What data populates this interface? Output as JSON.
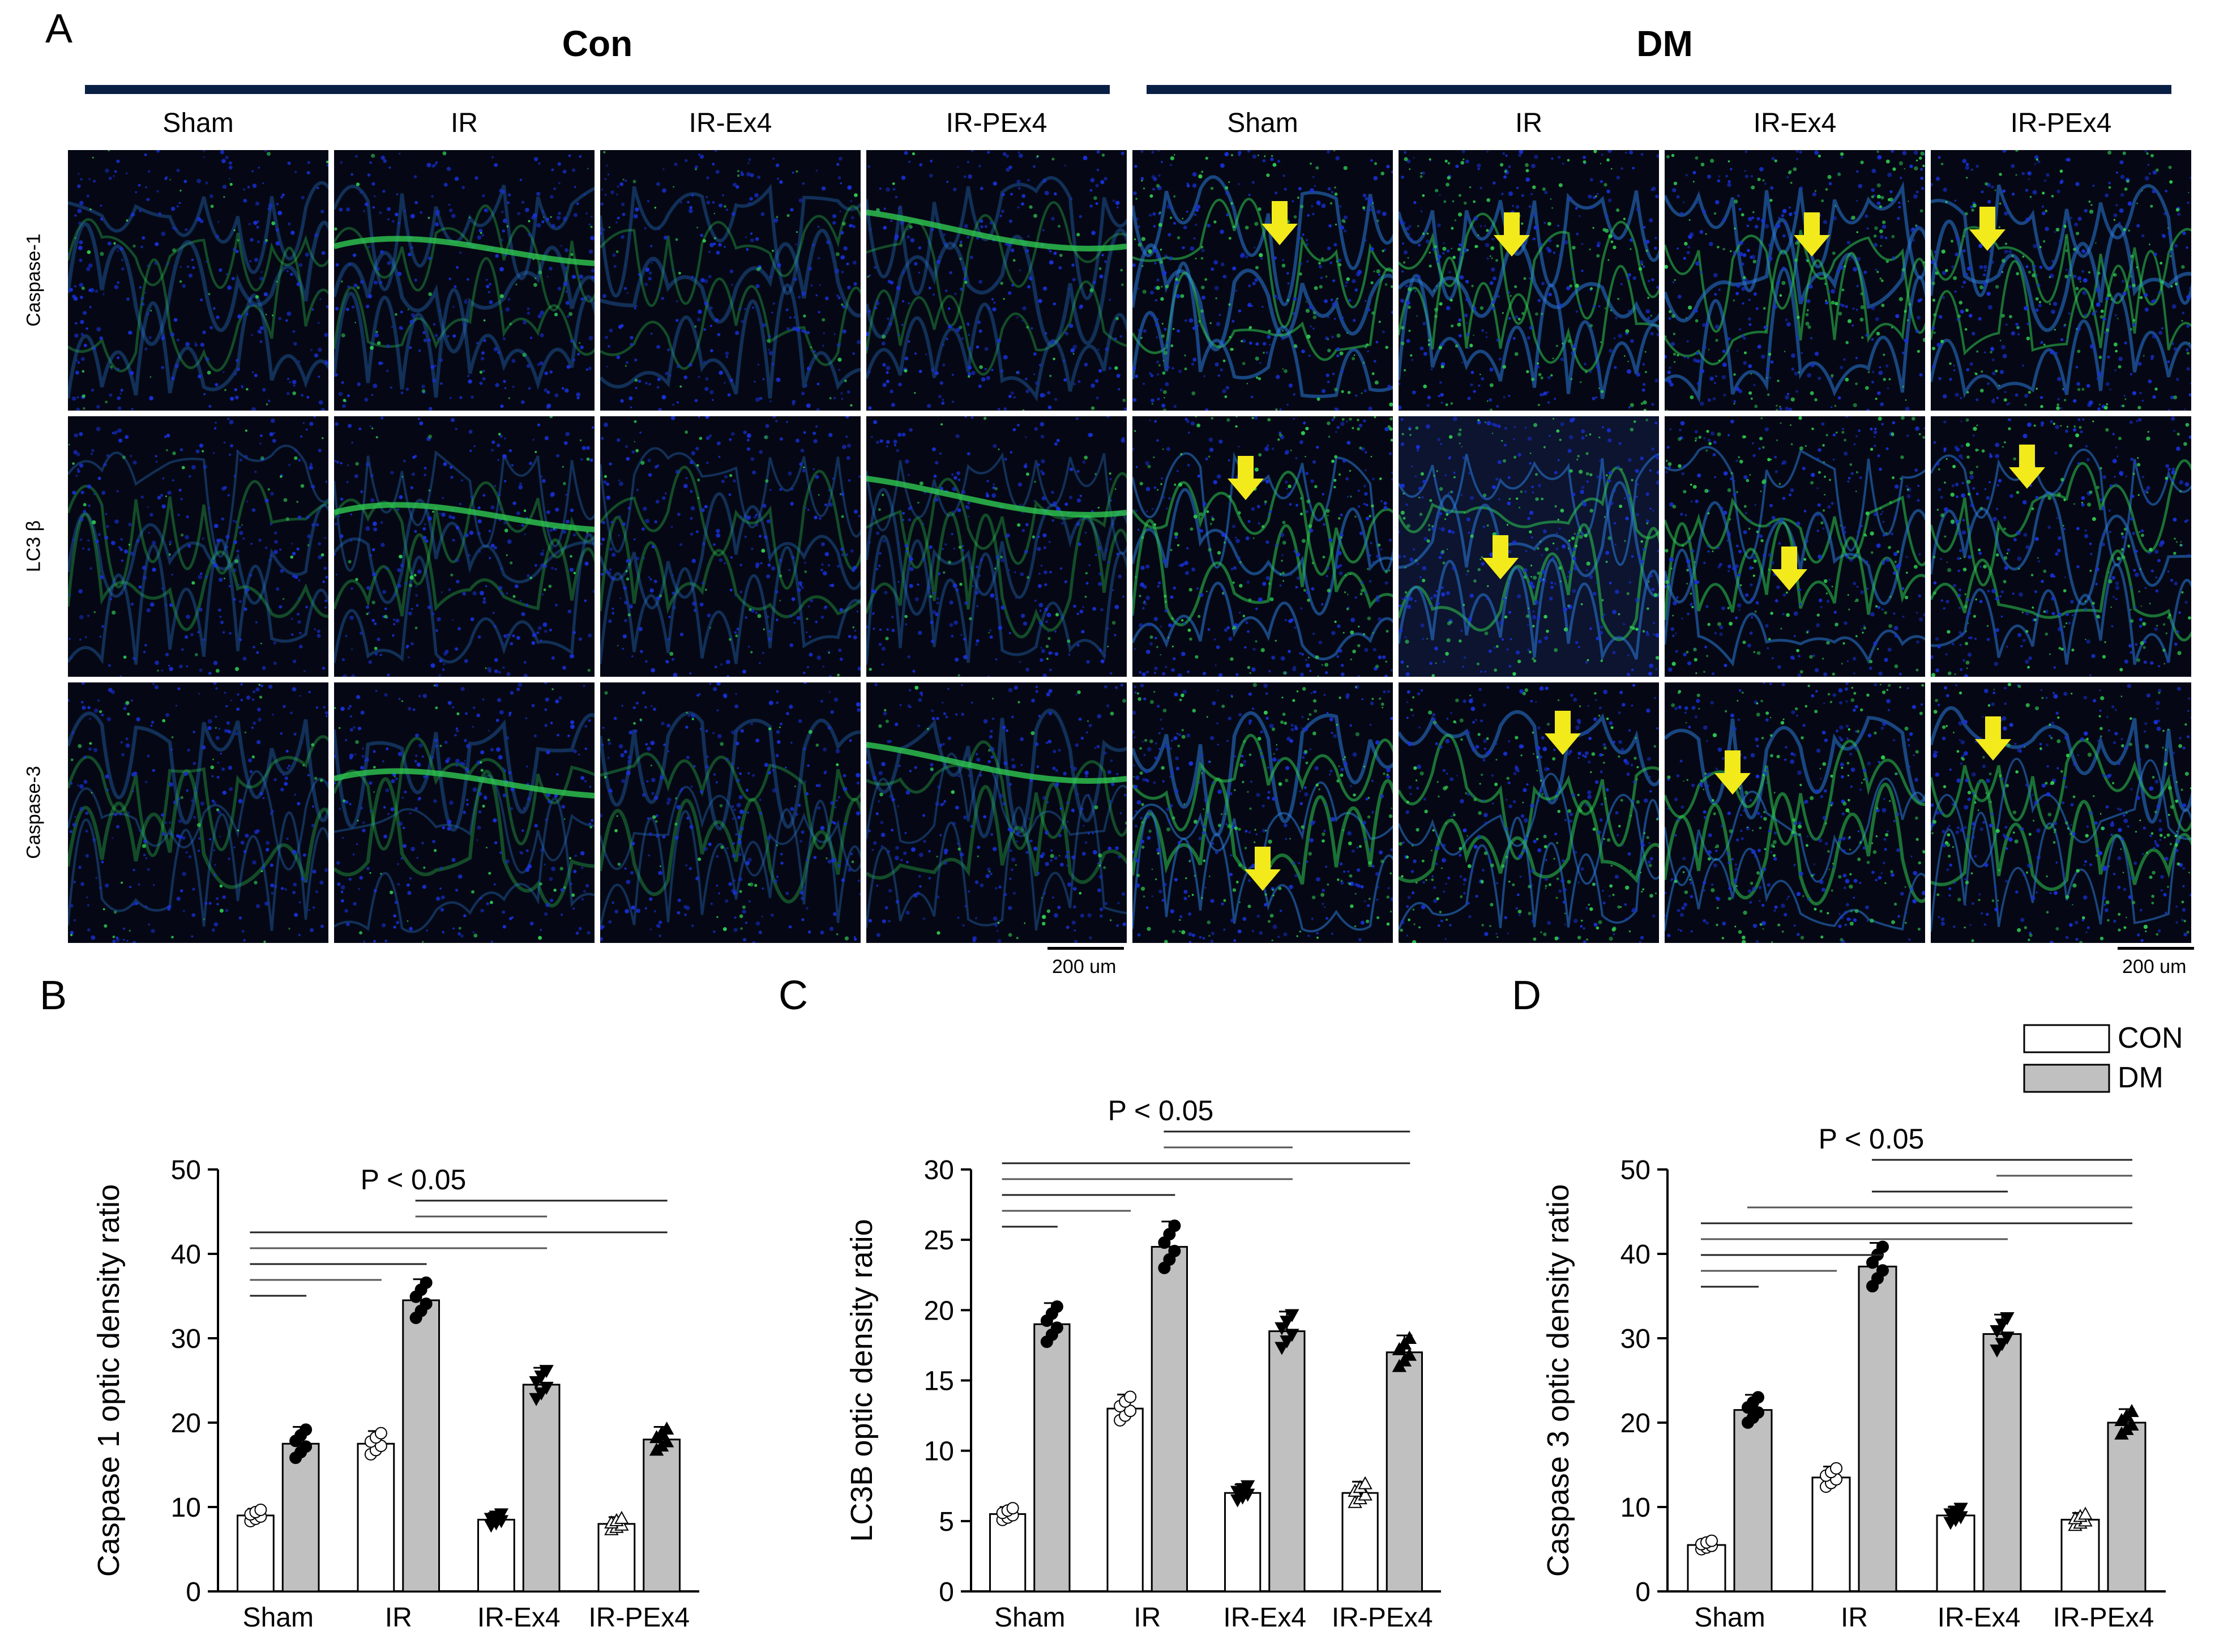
{
  "figure": {
    "panel_a_letter": "A",
    "groups": [
      {
        "title": "Con"
      },
      {
        "title": "DM"
      }
    ],
    "columns": [
      "Sham",
      "IR",
      "IR-Ex4",
      "IR-PEx4",
      "Sham",
      "IR",
      "IR-Ex4",
      "IR-PEx4"
    ],
    "rows": [
      "Caspase-1",
      "LC3 β",
      "Caspase-3"
    ],
    "scale_bar_label": "200 um",
    "arrow_color": "#f2ea1a",
    "stain_colors": {
      "nuclei": "#1830d8",
      "marker": "#2ec850",
      "background": "#050814"
    }
  },
  "legend": {
    "con_label": "CON",
    "dm_label": "DM",
    "con_color": "#ffffff",
    "dm_color": "#c0c0c0"
  },
  "chart_data": [
    {
      "panel": "B",
      "type": "bar",
      "categories": [
        "Sham",
        "IR",
        "IR-Ex4",
        "IR-PEx4"
      ],
      "series": [
        {
          "name": "CON",
          "values": [
            9,
            17.5,
            8.5,
            8
          ]
        },
        {
          "name": "DM",
          "values": [
            17.5,
            34.5,
            24.5,
            18
          ]
        }
      ],
      "errors": [
        [
          0.8,
          1.5,
          0.8,
          0.8
        ],
        [
          2,
          2.5,
          2,
          1.5
        ]
      ],
      "markers": [
        "circle",
        "circle",
        "triangle-down",
        "triangle-up"
      ],
      "ylabel": "Caspase 1 optic density ratio",
      "ylim": [
        0,
        50
      ],
      "yticks": [
        0,
        10,
        20,
        30,
        40,
        50
      ],
      "significance": "P < 0.05"
    },
    {
      "panel": "C",
      "type": "bar",
      "categories": [
        "Sham",
        "IR",
        "IR-Ex4",
        "IR-PEx4"
      ],
      "series": [
        {
          "name": "CON",
          "values": [
            5.5,
            13,
            7,
            7
          ]
        },
        {
          "name": "DM",
          "values": [
            19,
            24.5,
            18.5,
            17
          ]
        }
      ],
      "errors": [
        [
          0.5,
          1,
          0.6,
          0.8
        ],
        [
          1.5,
          1.8,
          1.4,
          1.2
        ]
      ],
      "markers": [
        "circle",
        "circle",
        "triangle-down",
        "triangle-up"
      ],
      "ylabel": "LC3B optic density ratio",
      "ylim": [
        0,
        30
      ],
      "yticks": [
        0,
        5,
        10,
        15,
        20,
        25,
        30
      ],
      "significance": "P < 0.05"
    },
    {
      "panel": "D",
      "type": "bar",
      "categories": [
        "Sham",
        "IR",
        "IR-Ex4",
        "IR-PEx4"
      ],
      "series": [
        {
          "name": "CON",
          "values": [
            5.5,
            13.5,
            9,
            8.5
          ]
        },
        {
          "name": "DM",
          "values": [
            21.5,
            38.5,
            30.5,
            20
          ]
        }
      ],
      "errors": [
        [
          0.6,
          1.3,
          1,
          0.8
        ],
        [
          1.8,
          2.8,
          2.3,
          1.6
        ]
      ],
      "markers": [
        "circle",
        "circle",
        "triangle-down",
        "triangle-up"
      ],
      "ylabel": "Caspase 3 optic density ratio",
      "ylim": [
        0,
        50
      ],
      "yticks": [
        0,
        10,
        20,
        30,
        40,
        50
      ],
      "significance": "P < 0.05"
    }
  ]
}
